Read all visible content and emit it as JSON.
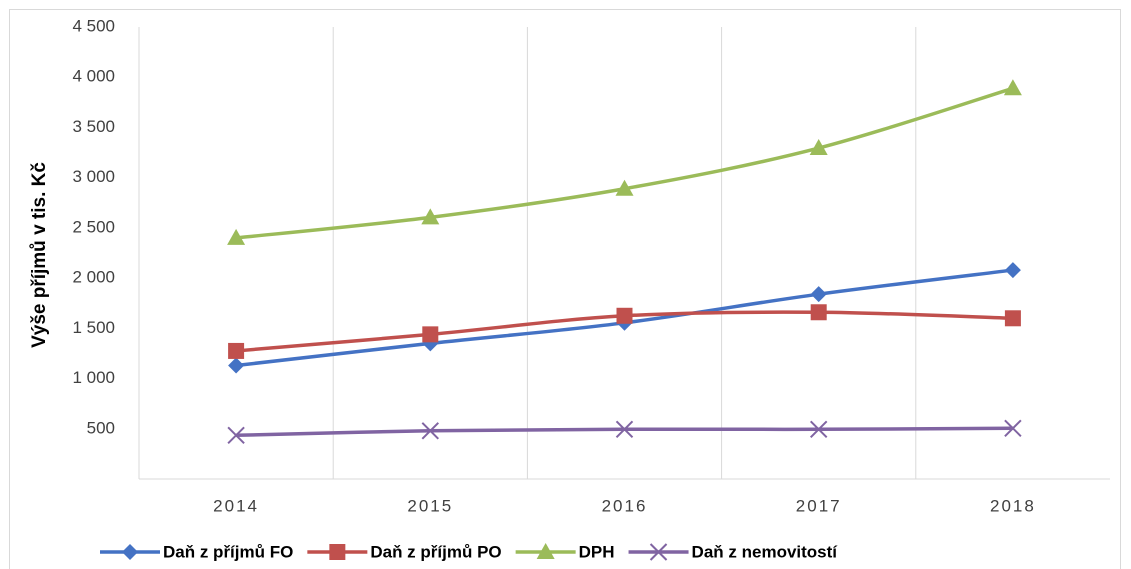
{
  "chart_data": {
    "type": "line",
    "y_label": "Výše příjmů v tis. Kč",
    "categories": [
      "2014",
      "2015",
      "2016",
      "2017",
      "2018"
    ],
    "series": [
      {
        "name": "Daň z příjmů FO",
        "color": "#4472c4",
        "marker": "diamond",
        "values": [
          1130,
          1350,
          1555,
          1840,
          2080
        ]
      },
      {
        "name": "Daň z příjmů PO",
        "color": "#c0504d",
        "marker": "square",
        "values": [
          1275,
          1440,
          1625,
          1660,
          1600
        ]
      },
      {
        "name": "DPH",
        "color": "#9bbb59",
        "marker": "triangle",
        "values": [
          2400,
          2605,
          2890,
          3295,
          3890
        ]
      },
      {
        "name": "Daň z nemovitostí",
        "color": "#8064a2",
        "marker": "x",
        "values": [
          435,
          480,
          495,
          495,
          505
        ]
      }
    ],
    "ylim": [
      0,
      4500
    ],
    "yticks": [
      500,
      {
        "value": 1000,
        "label": "1 000"
      },
      {
        "value": 1500,
        "label": "1 500"
      },
      {
        "value": 2000,
        "label": "2 000"
      },
      {
        "value": 2500,
        "label": "2 500"
      },
      {
        "value": 3000,
        "label": "3 000"
      },
      {
        "value": 3500,
        "label": "3 500"
      },
      {
        "value": 4000,
        "label": "4 000"
      },
      {
        "value": 4500,
        "label": "4 500"
      }
    ],
    "grid": "vertical",
    "smooth": true,
    "legend": "bottom"
  }
}
